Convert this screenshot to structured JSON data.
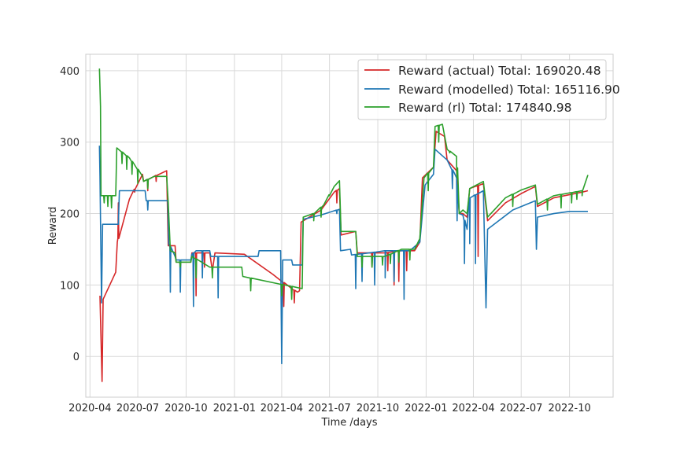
{
  "chart_data": {
    "type": "line",
    "title": "",
    "xlabel": "Time /days",
    "ylabel": "Reward",
    "x_type": "date",
    "xlim": [
      "2020-03-24",
      "2022-12-23"
    ],
    "ylim": [
      -57,
      423
    ],
    "x_ticks": [
      "2020-04",
      "2020-07",
      "2020-10",
      "2021-01",
      "2021-04",
      "2021-07",
      "2021-10",
      "2022-01",
      "2022-04",
      "2022-07",
      "2022-10"
    ],
    "y_ticks": [
      0,
      100,
      200,
      300,
      400
    ],
    "grid": true,
    "legend_position": "top-right",
    "series": [
      {
        "name": "Reward (actual) Total: 169020.48",
        "color": "#d62728",
        "points": [
          [
            "2020-04-20",
            85
          ],
          [
            "2020-04-24",
            -35
          ],
          [
            "2020-04-26",
            80
          ],
          [
            "2020-05-20",
            118
          ],
          [
            "2020-05-23",
            160
          ],
          [
            "2020-06-15",
            220
          ],
          [
            "2020-07-10",
            255
          ],
          [
            "2020-07-12",
            245
          ],
          [
            "2020-08-01",
            252
          ],
          [
            "2020-08-25",
            260
          ],
          [
            "2020-08-28",
            155
          ],
          [
            "2020-09-10",
            155
          ],
          [
            "2020-09-12",
            132
          ],
          [
            "2020-10-10",
            132
          ],
          [
            "2020-10-12",
            145
          ],
          [
            "2020-11-15",
            145
          ],
          [
            "2020-11-20",
            120
          ],
          [
            "2020-11-25",
            145
          ],
          [
            "2021-01-20",
            143
          ],
          [
            "2021-03-15",
            115
          ],
          [
            "2021-04-20",
            95
          ],
          [
            "2021-05-01",
            90
          ],
          [
            "2021-05-05",
            92
          ],
          [
            "2021-05-08",
            188
          ],
          [
            "2021-06-15",
            205
          ],
          [
            "2021-07-10",
            230
          ],
          [
            "2021-07-20",
            235
          ],
          [
            "2021-07-23",
            170
          ],
          [
            "2021-08-20",
            175
          ],
          [
            "2021-08-23",
            145
          ],
          [
            "2021-09-15",
            145
          ],
          [
            "2021-10-15",
            145
          ],
          [
            "2021-11-15",
            148
          ],
          [
            "2021-12-10",
            148
          ],
          [
            "2021-12-20",
            160
          ],
          [
            "2021-12-25",
            250
          ],
          [
            "2022-01-15",
            265
          ],
          [
            "2022-01-20",
            315
          ],
          [
            "2022-02-05",
            308
          ],
          [
            "2022-02-10",
            275
          ],
          [
            "2022-02-28",
            260
          ],
          [
            "2022-03-05",
            200
          ],
          [
            "2022-03-12",
            200
          ],
          [
            "2022-03-20",
            195
          ],
          [
            "2022-03-25",
            235
          ],
          [
            "2022-04-20",
            242
          ],
          [
            "2022-04-28",
            190
          ],
          [
            "2022-06-01",
            215
          ],
          [
            "2022-07-01",
            228
          ],
          [
            "2022-07-28",
            238
          ],
          [
            "2022-08-01",
            210
          ],
          [
            "2022-09-01",
            222
          ],
          [
            "2022-10-25",
            230
          ],
          [
            "2022-11-05",
            232
          ]
        ],
        "dips": [
          [
            "2020-05-25",
            215
          ],
          [
            "2020-06-25",
            230
          ],
          [
            "2020-07-20",
            232
          ],
          [
            "2020-08-05",
            245
          ],
          [
            "2020-09-20",
            125
          ],
          [
            "2020-10-20",
            85
          ],
          [
            "2020-11-05",
            125
          ],
          [
            "2021-04-05",
            70
          ],
          [
            "2021-04-25",
            75
          ],
          [
            "2021-07-15",
            215
          ],
          [
            "2021-09-20",
            125
          ],
          [
            "2021-10-20",
            120
          ],
          [
            "2021-11-01",
            100
          ],
          [
            "2021-11-10",
            105
          ],
          [
            "2021-11-25",
            120
          ],
          [
            "2022-04-10",
            140
          ]
        ]
      },
      {
        "name": "Reward (modelled) Total: 165116.90",
        "color": "#1f77b4",
        "points": [
          [
            "2020-04-19",
            295
          ],
          [
            "2020-04-20",
            252
          ],
          [
            "2020-04-23",
            75
          ],
          [
            "2020-04-25",
            185
          ],
          [
            "2020-05-25",
            185
          ],
          [
            "2020-05-27",
            232
          ],
          [
            "2020-07-15",
            232
          ],
          [
            "2020-07-17",
            218
          ],
          [
            "2020-08-27",
            218
          ],
          [
            "2020-08-29",
            158
          ],
          [
            "2020-09-10",
            140
          ],
          [
            "2020-09-12",
            135
          ],
          [
            "2020-10-10",
            135
          ],
          [
            "2020-10-12",
            143
          ],
          [
            "2020-10-20",
            148
          ],
          [
            "2020-11-15",
            148
          ],
          [
            "2020-11-17",
            140
          ],
          [
            "2021-02-15",
            140
          ],
          [
            "2021-02-17",
            148
          ],
          [
            "2021-03-30",
            148
          ],
          [
            "2021-04-01",
            -10
          ],
          [
            "2021-04-03",
            135
          ],
          [
            "2021-04-20",
            135
          ],
          [
            "2021-04-22",
            128
          ],
          [
            "2021-05-10",
            128
          ],
          [
            "2021-05-12",
            192
          ],
          [
            "2021-06-15",
            198
          ],
          [
            "2021-07-20",
            206
          ],
          [
            "2021-07-22",
            148
          ],
          [
            "2021-08-10",
            150
          ],
          [
            "2021-08-12",
            142
          ],
          [
            "2021-09-15",
            145
          ],
          [
            "2021-10-15",
            148
          ],
          [
            "2021-12-01",
            148
          ],
          [
            "2021-12-20",
            160
          ],
          [
            "2021-12-30",
            240
          ],
          [
            "2022-01-15",
            255
          ],
          [
            "2022-01-18",
            290
          ],
          [
            "2022-02-10",
            275
          ],
          [
            "2022-02-28",
            250
          ],
          [
            "2022-03-05",
            200
          ],
          [
            "2022-03-12",
            198
          ],
          [
            "2022-03-20",
            178
          ],
          [
            "2022-03-25",
            222
          ],
          [
            "2022-04-20",
            232
          ],
          [
            "2022-04-25",
            68
          ],
          [
            "2022-04-28",
            178
          ],
          [
            "2022-06-15",
            205
          ],
          [
            "2022-07-28",
            218
          ],
          [
            "2022-07-30",
            150
          ],
          [
            "2022-08-01",
            195
          ],
          [
            "2022-09-01",
            200
          ],
          [
            "2022-10-01",
            203
          ],
          [
            "2022-11-05",
            203
          ]
        ],
        "dips": [
          [
            "2020-07-20",
            205
          ],
          [
            "2020-09-01",
            90
          ],
          [
            "2020-09-20",
            90
          ],
          [
            "2020-10-15",
            70
          ],
          [
            "2020-11-01",
            110
          ],
          [
            "2020-12-01",
            82
          ],
          [
            "2021-07-15",
            200
          ],
          [
            "2021-08-20",
            95
          ],
          [
            "2021-09-01",
            105
          ],
          [
            "2021-09-25",
            100
          ],
          [
            "2021-10-15",
            110
          ],
          [
            "2021-11-01",
            105
          ],
          [
            "2021-11-20",
            80
          ],
          [
            "2022-02-20",
            235
          ],
          [
            "2022-03-01",
            190
          ],
          [
            "2022-03-15",
            130
          ],
          [
            "2022-03-25",
            158
          ],
          [
            "2022-04-05",
            130
          ]
        ]
      },
      {
        "name": "Reward (rl) Total: 174840.98",
        "color": "#2ca02c",
        "points": [
          [
            "2020-04-19",
            403
          ],
          [
            "2020-04-21",
            350
          ],
          [
            "2020-04-22",
            225
          ],
          [
            "2020-05-20",
            225
          ],
          [
            "2020-05-22",
            292
          ],
          [
            "2020-06-15",
            278
          ],
          [
            "2020-07-05",
            258
          ],
          [
            "2020-07-10",
            252
          ],
          [
            "2020-07-12",
            245
          ],
          [
            "2020-08-01",
            252
          ],
          [
            "2020-08-25",
            252
          ],
          [
            "2020-08-28",
            215
          ],
          [
            "2020-09-01",
            148
          ],
          [
            "2020-09-10",
            145
          ],
          [
            "2020-09-12",
            132
          ],
          [
            "2020-10-10",
            132
          ],
          [
            "2020-10-12",
            140
          ],
          [
            "2020-11-15",
            125
          ],
          [
            "2021-01-15",
            125
          ],
          [
            "2021-01-17",
            112
          ],
          [
            "2021-05-10",
            95
          ],
          [
            "2021-05-12",
            195
          ],
          [
            "2021-06-01",
            200
          ],
          [
            "2021-06-20",
            212
          ],
          [
            "2021-07-10",
            238
          ],
          [
            "2021-07-20",
            246
          ],
          [
            "2021-07-23",
            175
          ],
          [
            "2021-08-20",
            175
          ],
          [
            "2021-08-23",
            140
          ],
          [
            "2021-09-15",
            140
          ],
          [
            "2021-10-15",
            140
          ],
          [
            "2021-11-15",
            150
          ],
          [
            "2021-12-10",
            150
          ],
          [
            "2021-12-20",
            165
          ],
          [
            "2021-12-28",
            250
          ],
          [
            "2022-01-15",
            265
          ],
          [
            "2022-01-18",
            322
          ],
          [
            "2022-02-01",
            325
          ],
          [
            "2022-02-10",
            290
          ],
          [
            "2022-02-28",
            280
          ],
          [
            "2022-03-05",
            200
          ],
          [
            "2022-03-12",
            205
          ],
          [
            "2022-03-20",
            200
          ],
          [
            "2022-03-25",
            235
          ],
          [
            "2022-04-20",
            245
          ],
          [
            "2022-04-28",
            195
          ],
          [
            "2022-06-01",
            222
          ],
          [
            "2022-07-01",
            233
          ],
          [
            "2022-07-28",
            240
          ],
          [
            "2022-08-01",
            213
          ],
          [
            "2022-09-01",
            225
          ],
          [
            "2022-10-25",
            232
          ],
          [
            "2022-11-05",
            254
          ]
        ],
        "dips": [
          [
            "2020-04-28",
            215
          ],
          [
            "2020-05-05",
            210
          ],
          [
            "2020-05-12",
            208
          ],
          [
            "2020-06-01",
            270
          ],
          [
            "2020-06-10",
            262
          ],
          [
            "2020-06-20",
            255
          ],
          [
            "2020-07-01",
            242
          ],
          [
            "2020-07-20",
            235
          ],
          [
            "2020-09-20",
            125
          ],
          [
            "2020-10-20",
            110
          ],
          [
            "2020-11-20",
            110
          ],
          [
            "2021-02-01",
            92
          ],
          [
            "2021-04-01",
            85
          ],
          [
            "2021-04-20",
            80
          ],
          [
            "2021-06-01",
            190
          ],
          [
            "2021-06-15",
            195
          ],
          [
            "2021-07-01",
            225
          ],
          [
            "2021-09-01",
            125
          ],
          [
            "2021-09-20",
            125
          ],
          [
            "2021-10-10",
            128
          ],
          [
            "2021-10-25",
            130
          ],
          [
            "2021-11-10",
            132
          ],
          [
            "2021-12-01",
            135
          ],
          [
            "2022-01-05",
            232
          ],
          [
            "2022-01-25",
            300
          ],
          [
            "2022-02-15",
            285
          ],
          [
            "2022-03-01",
            250
          ],
          [
            "2022-06-15",
            210
          ],
          [
            "2022-08-20",
            205
          ],
          [
            "2022-09-15",
            208
          ],
          [
            "2022-10-05",
            215
          ],
          [
            "2022-10-15",
            220
          ],
          [
            "2022-10-25",
            225
          ]
        ]
      }
    ]
  }
}
